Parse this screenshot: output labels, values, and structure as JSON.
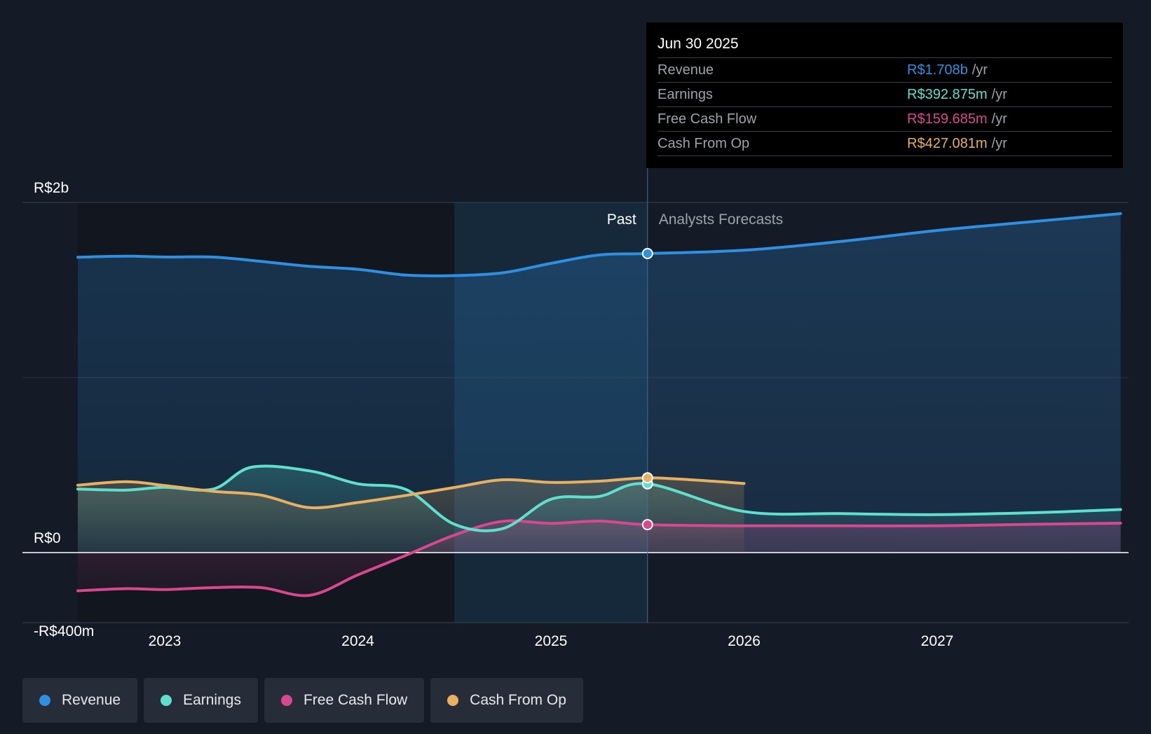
{
  "chart_data": {
    "type": "line",
    "y_axis": {
      "ylim": [
        -400,
        2000
      ],
      "unit": "R$m",
      "tick_labels": [
        "R$2b",
        "R$0",
        "-R$400m"
      ]
    },
    "x_axis": {
      "range": [
        2022.55,
        2027.95
      ],
      "ticks": [
        2023,
        2024,
        2025,
        2026,
        2027
      ],
      "tick_labels": [
        "2023",
        "2024",
        "2025",
        "2026",
        "2027"
      ]
    },
    "divider_label_past": "Past",
    "divider_label_forecast": "Analysts Forecasts",
    "current_date_x": 2025.5,
    "highlight_start_x": 2024.5,
    "series": [
      {
        "name": "Revenue",
        "color": "#2f8fe0",
        "points": [
          [
            2022.55,
            1687
          ],
          [
            2022.8,
            1693
          ],
          [
            2023.0,
            1688
          ],
          [
            2023.25,
            1688
          ],
          [
            2023.5,
            1663
          ],
          [
            2023.75,
            1635
          ],
          [
            2024.0,
            1618
          ],
          [
            2024.25,
            1585
          ],
          [
            2024.5,
            1582
          ],
          [
            2024.75,
            1598
          ],
          [
            2025.0,
            1652
          ],
          [
            2025.25,
            1700
          ],
          [
            2025.5,
            1708
          ],
          [
            2026.0,
            1727
          ],
          [
            2026.5,
            1777
          ],
          [
            2027.0,
            1840
          ],
          [
            2027.5,
            1891
          ],
          [
            2027.95,
            1936
          ]
        ]
      },
      {
        "name": "Earnings",
        "color": "#5fe0cf",
        "points": [
          [
            2022.55,
            363
          ],
          [
            2022.8,
            357
          ],
          [
            2023.0,
            373
          ],
          [
            2023.25,
            363
          ],
          [
            2023.45,
            488
          ],
          [
            2023.75,
            467
          ],
          [
            2024.0,
            393
          ],
          [
            2024.25,
            360
          ],
          [
            2024.5,
            162
          ],
          [
            2024.75,
            137
          ],
          [
            2025.0,
            305
          ],
          [
            2025.25,
            321
          ],
          [
            2025.5,
            392.875
          ],
          [
            2026.0,
            235
          ],
          [
            2026.5,
            223
          ],
          [
            2027.0,
            217
          ],
          [
            2027.5,
            228
          ],
          [
            2027.95,
            246
          ]
        ]
      },
      {
        "name": "Free Cash Flow",
        "color": "#d9478f",
        "points": [
          [
            2022.55,
            -218
          ],
          [
            2022.8,
            -206
          ],
          [
            2023.0,
            -211
          ],
          [
            2023.25,
            -200
          ],
          [
            2023.5,
            -200
          ],
          [
            2023.75,
            -244
          ],
          [
            2024.0,
            -127
          ],
          [
            2024.25,
            -15
          ],
          [
            2024.5,
            100
          ],
          [
            2024.75,
            179
          ],
          [
            2025.0,
            167
          ],
          [
            2025.25,
            180
          ],
          [
            2025.5,
            159.685
          ],
          [
            2026.0,
            153
          ],
          [
            2026.5,
            153
          ],
          [
            2027.0,
            153
          ],
          [
            2027.5,
            162
          ],
          [
            2027.95,
            168
          ]
        ]
      },
      {
        "name": "Cash From Op",
        "color": "#e8b05f",
        "points": [
          [
            2022.55,
            385
          ],
          [
            2022.8,
            405
          ],
          [
            2023.0,
            383
          ],
          [
            2023.25,
            350
          ],
          [
            2023.5,
            328
          ],
          [
            2023.75,
            257
          ],
          [
            2024.0,
            286
          ],
          [
            2024.25,
            327
          ],
          [
            2024.5,
            372
          ],
          [
            2024.75,
            416
          ],
          [
            2025.0,
            401
          ],
          [
            2025.25,
            408
          ],
          [
            2025.5,
            427.081
          ],
          [
            2025.75,
            414
          ],
          [
            2026.0,
            395
          ]
        ]
      }
    ]
  },
  "tooltip": {
    "date": "Jun 30 2025",
    "rows": [
      {
        "label": "Revenue",
        "value": "R$1.708b",
        "unit": "/yr",
        "color": "#2f8fe0"
      },
      {
        "label": "Earnings",
        "value": "R$392.875m",
        "unit": "/yr",
        "color": "#5fe0cf"
      },
      {
        "label": "Free Cash Flow",
        "value": "R$159.685m",
        "unit": "/yr",
        "color": "#d9478f"
      },
      {
        "label": "Cash From Op",
        "value": "R$427.081m",
        "unit": "/yr",
        "color": "#e8b05f"
      }
    ]
  },
  "legend": [
    {
      "label": "Revenue",
      "color": "#2f8fe0"
    },
    {
      "label": "Earnings",
      "color": "#5fe0cf"
    },
    {
      "label": "Free Cash Flow",
      "color": "#d9478f"
    },
    {
      "label": "Cash From Op",
      "color": "#e8b05f"
    }
  ]
}
